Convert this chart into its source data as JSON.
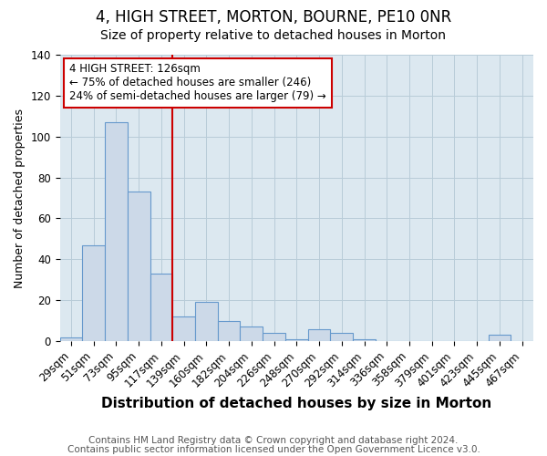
{
  "title": "4, HIGH STREET, MORTON, BOURNE, PE10 0NR",
  "subtitle": "Size of property relative to detached houses in Morton",
  "xlabel": "Distribution of detached houses by size in Morton",
  "ylabel": "Number of detached properties",
  "bins": [
    "29sqm",
    "51sqm",
    "73sqm",
    "95sqm",
    "117sqm",
    "139sqm",
    "160sqm",
    "182sqm",
    "204sqm",
    "226sqm",
    "248sqm",
    "270sqm",
    "292sqm",
    "314sqm",
    "336sqm",
    "358sqm",
    "379sqm",
    "401sqm",
    "423sqm",
    "445sqm",
    "467sqm"
  ],
  "values": [
    2,
    47,
    107,
    73,
    33,
    12,
    19,
    10,
    7,
    4,
    1,
    6,
    4,
    1,
    0,
    0,
    0,
    0,
    0,
    3,
    0
  ],
  "bar_color": "#ccd9e8",
  "bar_edge_color": "#6699cc",
  "vline_color": "#cc0000",
  "annotation_text": "4 HIGH STREET: 126sqm\n← 75% of detached houses are smaller (246)\n24% of semi-detached houses are larger (79) →",
  "annotation_box_color": "#ffffff",
  "annotation_box_edge": "#cc0000",
  "ylim": [
    0,
    140
  ],
  "footnote1": "Contains HM Land Registry data © Crown copyright and database right 2024.",
  "footnote2": "Contains public sector information licensed under the Open Government Licence v3.0.",
  "bg_color": "#ffffff",
  "plot_bg_color": "#dce8f0",
  "grid_color": "#b8ccd8",
  "title_fontsize": 12,
  "subtitle_fontsize": 10,
  "xlabel_fontsize": 11,
  "ylabel_fontsize": 9,
  "tick_fontsize": 8.5,
  "footnote_fontsize": 7.5,
  "vline_x_idx": 4.5
}
